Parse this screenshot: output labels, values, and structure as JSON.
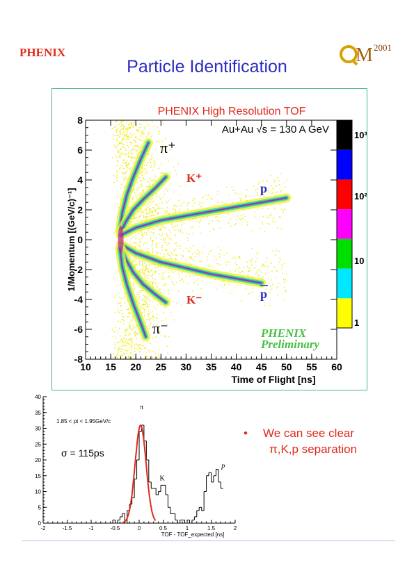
{
  "header": {
    "logo_left": "PHENIX",
    "logo_right_letters": "QM",
    "logo_right_year": "2001",
    "title": "Particle Identification"
  },
  "colors": {
    "title": "#2c2cc0",
    "tof_title": "#e02a1a",
    "positive_labels": "#e02a1a",
    "negative_labels": "#e02a1a",
    "proton_labels": "#2c2cc0",
    "preliminary": "#44c040",
    "bullet": "#e02a1a",
    "fit_line": "#e02a1a"
  },
  "tof_plot": {
    "title": "PHENIX High Resolution TOF",
    "subtitle": "Au+Au √s = 130 A GeV",
    "xlabel": "Time of Flight [ns]",
    "ylabel": "1/Momentum [(GeV/c)⁻¹]",
    "stamp_line1": "PHENIX",
    "stamp_line2": "Preliminary",
    "labels": {
      "pi_plus": "π⁺",
      "k_plus": "K⁺",
      "p": "p",
      "k_minus": "K⁻",
      "pbar": "p",
      "pi_minus": "π⁻"
    },
    "colorbar": {
      "colors": [
        "#ffff00",
        "#00e8ff",
        "#00e000",
        "#ff00ff",
        "#ff0000",
        "#0000ff",
        "#000000"
      ],
      "labels": [
        "1",
        "10",
        "10²",
        "10³"
      ]
    }
  },
  "chart_data": [
    {
      "type": "scatter",
      "title": "PHENIX High Resolution TOF",
      "xlabel": "Time of Flight [ns]",
      "ylabel": "1/Momentum [(GeV/c)⁻¹]",
      "xlim": [
        10,
        60
      ],
      "ylim": [
        -8,
        8
      ],
      "x_ticks": [
        10,
        15,
        20,
        25,
        30,
        35,
        40,
        45,
        50,
        55,
        60
      ],
      "y_ticks": [
        -8,
        -6,
        -4,
        -2,
        0,
        2,
        4,
        6,
        8
      ],
      "colorbar_ticks": [
        "1",
        "10",
        "10²",
        "10³"
      ],
      "bands": [
        {
          "name": "π⁺",
          "x": [
            16.8,
            17.3,
            18.2,
            19.5,
            21.0,
            22.5
          ],
          "y": [
            0.6,
            1.8,
            3.0,
            4.2,
            5.4,
            6.5
          ]
        },
        {
          "name": "K⁺",
          "x": [
            17.0,
            18.0,
            19.5,
            21.5,
            24.0,
            26.0
          ],
          "y": [
            0.5,
            1.2,
            2.0,
            2.7,
            3.5,
            4.2
          ]
        },
        {
          "name": "p",
          "x": [
            17.0,
            20.0,
            25.0,
            30.0,
            35.0,
            40.0,
            45.0,
            50.0
          ],
          "y": [
            0.3,
            0.8,
            1.3,
            1.6,
            1.9,
            2.2,
            2.5,
            2.8
          ]
        },
        {
          "name": "p̅",
          "x": [
            17.0,
            20.0,
            25.0,
            30.0,
            35.0,
            40.0,
            45.0
          ],
          "y": [
            -0.3,
            -0.9,
            -1.5,
            -1.9,
            -2.3,
            -2.6,
            -2.9
          ]
        },
        {
          "name": "K⁻",
          "x": [
            17.0,
            18.0,
            19.5,
            21.5,
            24.0,
            26.0
          ],
          "y": [
            -0.5,
            -1.3,
            -2.2,
            -3.0,
            -3.7,
            -4.2
          ]
        },
        {
          "name": "π⁻",
          "x": [
            16.8,
            17.3,
            18.2,
            19.5,
            21.0,
            22.0
          ],
          "y": [
            -0.6,
            -1.8,
            -3.0,
            -4.3,
            -5.6,
            -6.5
          ]
        }
      ]
    },
    {
      "type": "bar",
      "annotation": "1.85 < pt < 1.95GeV/c",
      "sigma_label": "σ = 115ps",
      "xlabel": "TOF - TOF_expected [ns]",
      "xlim": [
        -2,
        2
      ],
      "ylim": [
        0,
        40
      ],
      "x_ticks": [
        -2,
        -1.5,
        -1,
        -0.5,
        0,
        0.5,
        1,
        1.5,
        2
      ],
      "y_ticks": [
        0,
        5,
        10,
        15,
        20,
        25,
        30,
        35,
        40
      ],
      "peak_labels": [
        {
          "text": "π",
          "x": 0.05,
          "y": 36
        },
        {
          "text": "K",
          "x": 0.48,
          "y": 13.5
        },
        {
          "text": "p",
          "x": 1.75,
          "y": 17.5
        }
      ],
      "bin_width": 0.05,
      "bin_start": -0.6,
      "counts": [
        0,
        1,
        0,
        1,
        2,
        3,
        0,
        4,
        6,
        8,
        14,
        20,
        29,
        31,
        26,
        20,
        13,
        11,
        11,
        9,
        10,
        12,
        12,
        9,
        5,
        3,
        3,
        1,
        0,
        1,
        1,
        0,
        1,
        0,
        1,
        2,
        4,
        5,
        4,
        10,
        15,
        16,
        13,
        15,
        17,
        13,
        11
      ],
      "fit": {
        "type": "gaussian",
        "amplitude": 31,
        "mean": 0.03,
        "sigma": 0.115
      }
    }
  ],
  "bullet": {
    "line1": "We can see clear",
    "line2": "π,K,p separation"
  }
}
